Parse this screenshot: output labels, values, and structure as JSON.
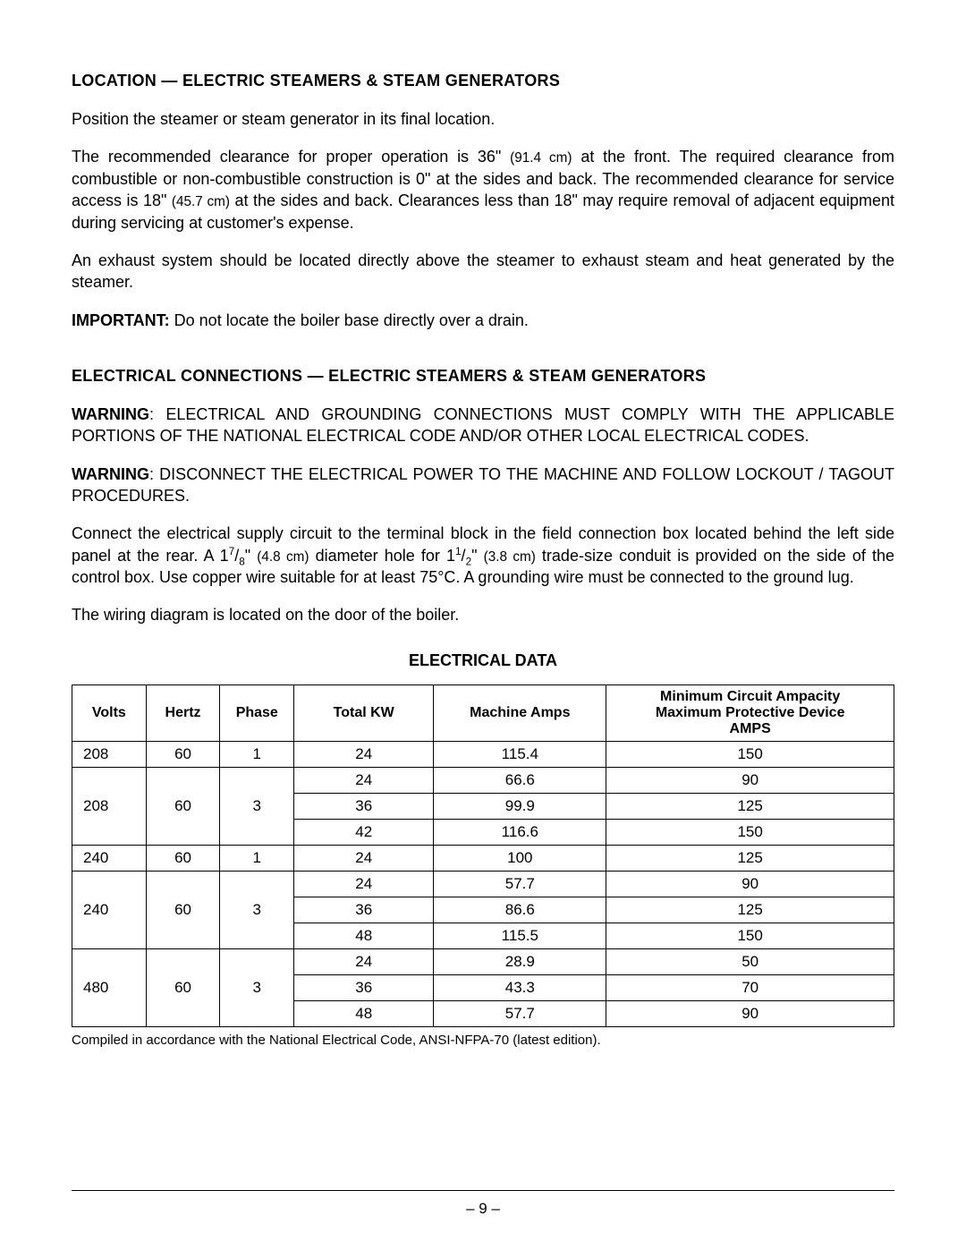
{
  "sections": {
    "location": {
      "heading": "LOCATION — ELECTRIC STEAMERS & STEAM GENERATORS",
      "p1": "Position the steamer or steam generator in its final location.",
      "p2_a": "The recommended clearance for proper operation is 36\" ",
      "p2_b": "(91.4 cm)",
      "p2_c": " at the front.  The required clearance from combustible or non-combustible construction is 0\" at the sides and back.  The recommended clearance for service access is 18\" ",
      "p2_d": "(45.7 cm)",
      "p2_e": " at the sides and back.  Clearances less than 18\" may require removal of adjacent equipment during servicing at customer's expense.",
      "p3": "An exhaust system should be located directly above the steamer to exhaust steam and heat generated by the steamer.",
      "p4_label": "IMPORTANT:",
      "p4_text": " Do not locate the boiler base directly over a drain."
    },
    "electrical": {
      "heading": "ELECTRICAL CONNECTIONS — ELECTRIC STEAMERS & STEAM GENERATORS",
      "w1_label": "WARNING",
      "w1_text": ":  ELECTRICAL AND GROUNDING CONNECTIONS MUST COMPLY WITH THE APPLICABLE PORTIONS OF THE NATIONAL ELECTRICAL CODE AND/OR OTHER LOCAL ELECTRICAL CODES.",
      "w2_label": "WARNING",
      "w2_text": ": DISCONNECT THE ELECTRICAL POWER TO THE MACHINE AND FOLLOW LOCKOUT / TAGOUT PROCEDURES.",
      "p1_a": "Connect the electrical supply circuit to the terminal block in the field connection box located behind the left side panel at the rear.  A 1",
      "p1_frac1_n": "7",
      "p1_frac1_d": "8",
      "p1_b": "\" ",
      "p1_c": "(4.8 cm)",
      "p1_d": " diameter hole for 1",
      "p1_frac2_n": "1",
      "p1_frac2_d": "2",
      "p1_e": "\" ",
      "p1_f": "(3.8 cm)",
      "p1_g": " trade-size conduit is provided on the side of the control box.  Use copper wire suitable for at least 75°C.  A grounding wire must be connected to the ground lug.",
      "p2": "The wiring diagram is located on the door of the boiler."
    }
  },
  "table": {
    "title": "ELECTRICAL DATA",
    "headers": {
      "volts": "Volts",
      "hertz": "Hertz",
      "phase": "Phase",
      "total_kw": "Total KW",
      "machine_amps": "Machine Amps",
      "min_circuit_l1": "Minimum Circuit Ampacity",
      "min_circuit_l2": "Maximum Protective Device",
      "min_circuit_l3": "AMPS"
    },
    "rows": [
      {
        "volts": "208",
        "hertz": "60",
        "phase": "1",
        "total_kw": "24",
        "machine_amps": "115.4",
        "amps": "150",
        "rowspan": 1
      },
      {
        "volts": "208",
        "hertz": "60",
        "phase": "3",
        "total_kw": "24",
        "machine_amps": "66.6",
        "amps": "90",
        "rowspan": 3
      },
      {
        "total_kw": "36",
        "machine_amps": "99.9",
        "amps": "125"
      },
      {
        "total_kw": "42",
        "machine_amps": "116.6",
        "amps": "150"
      },
      {
        "volts": "240",
        "hertz": "60",
        "phase": "1",
        "total_kw": "24",
        "machine_amps": "100",
        "amps": "125",
        "rowspan": 1
      },
      {
        "volts": "240",
        "hertz": "60",
        "phase": "3",
        "total_kw": "24",
        "machine_amps": "57.7",
        "amps": "90",
        "rowspan": 3
      },
      {
        "total_kw": "36",
        "machine_amps": "86.6",
        "amps": "125"
      },
      {
        "total_kw": "48",
        "machine_amps": "115.5",
        "amps": "150"
      },
      {
        "volts": "480",
        "hertz": "60",
        "phase": "3",
        "total_kw": "24",
        "machine_amps": "28.9",
        "amps": "50",
        "rowspan": 3
      },
      {
        "total_kw": "36",
        "machine_amps": "43.3",
        "amps": "70"
      },
      {
        "total_kw": "48",
        "machine_amps": "57.7",
        "amps": "90"
      }
    ],
    "col_widths": [
      "9%",
      "9%",
      "9%",
      "17%",
      "21%",
      "35%"
    ],
    "footnote": "Compiled in accordance with the National Electrical Code, ANSI-NFPA-70 (latest edition)."
  },
  "footer": {
    "page_number": "– 9 –"
  }
}
